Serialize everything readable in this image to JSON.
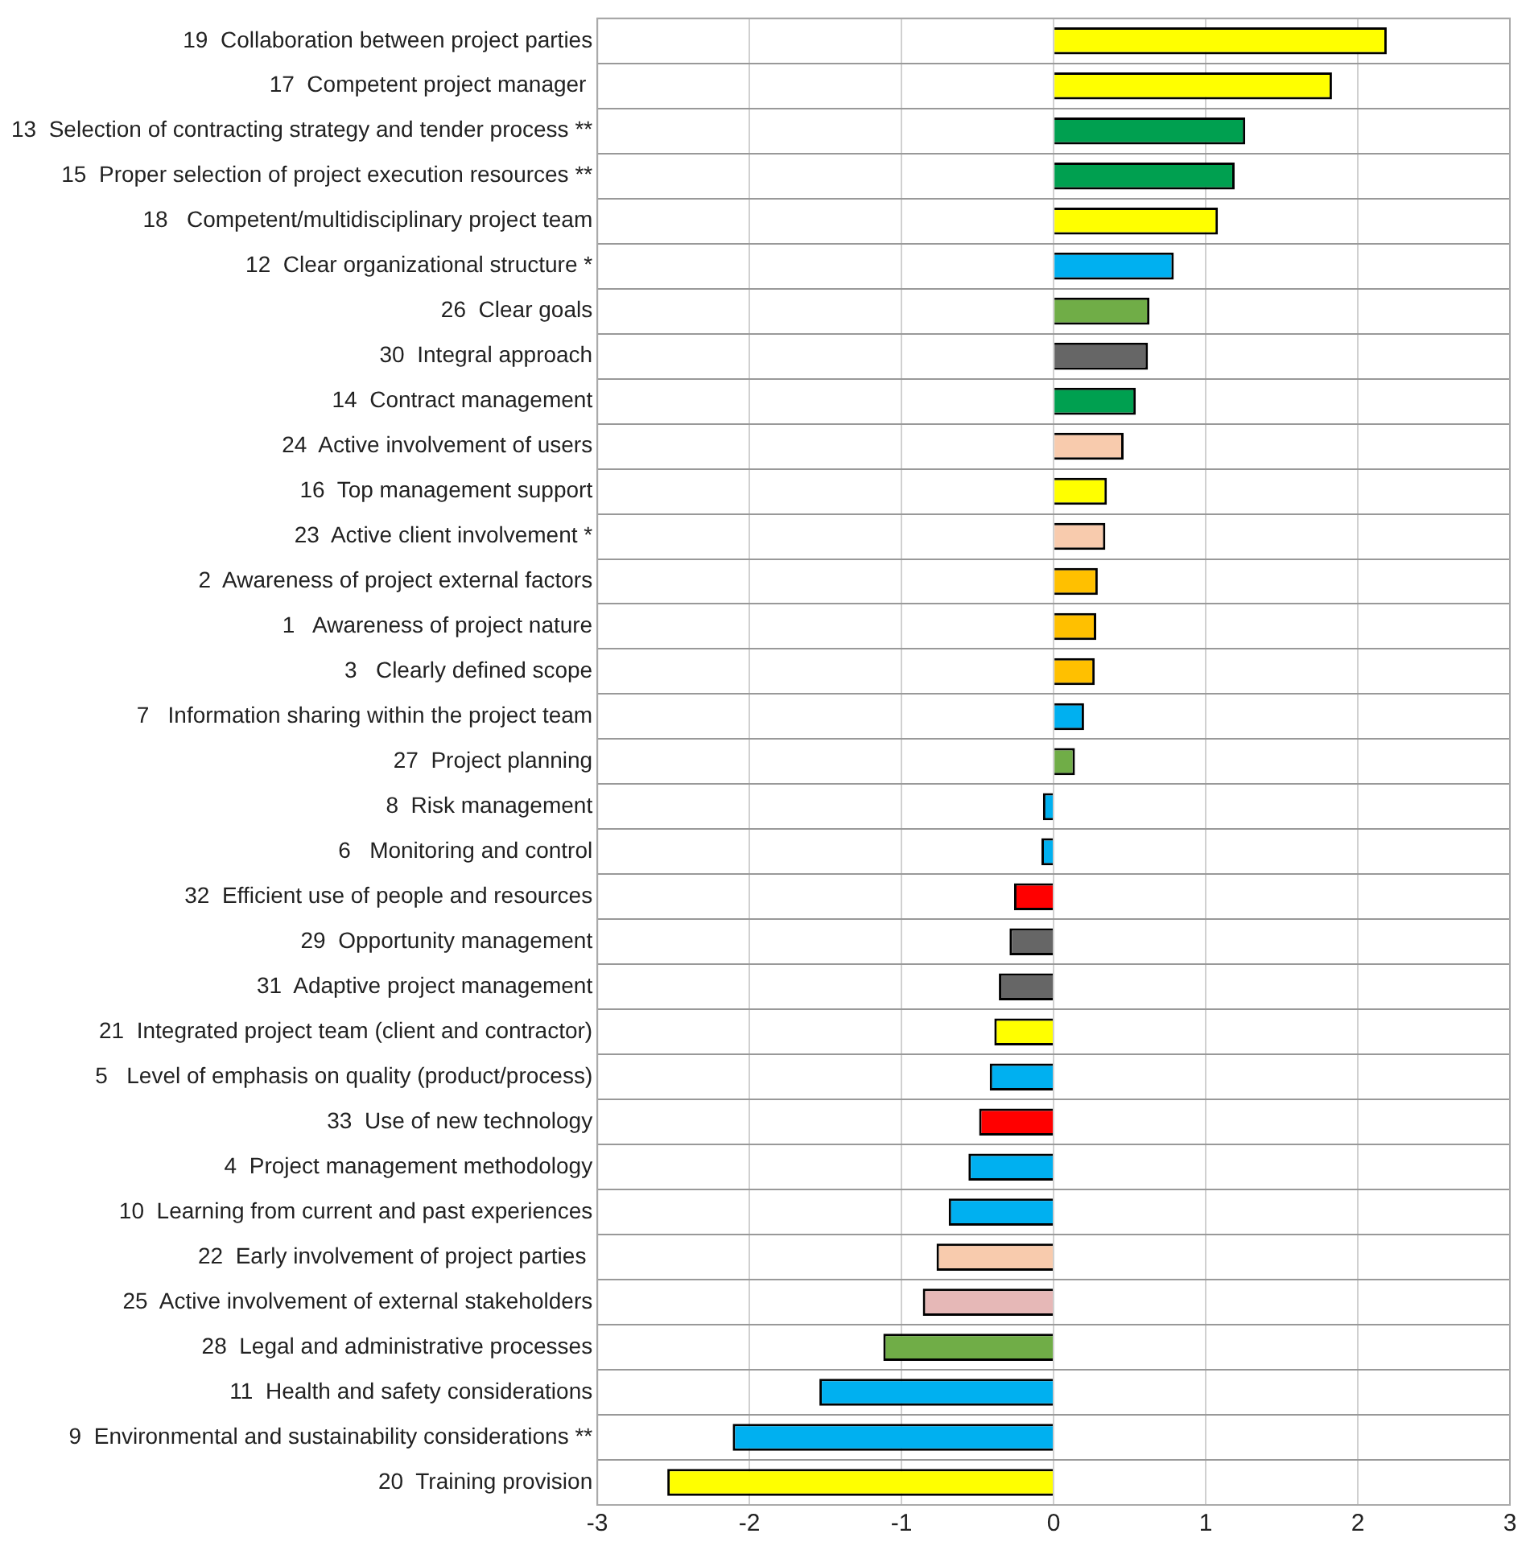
{
  "chart_data": {
    "type": "bar",
    "orientation": "horizontal",
    "categories": [
      "19  Collaboration between project parties",
      "17  Competent project manager ",
      "13  Selection of contracting strategy and tender process **",
      "15  Proper selection of project execution resources **",
      "18   Competent/multidisciplinary project team",
      "12  Clear organizational structure *",
      "26  Clear goals",
      "30  Integral approach",
      "14  Contract management",
      "24  Active involvement of users",
      "16  Top management support",
      "23  Active client involvement *",
      "2  Awareness of project external factors",
      "1   Awareness of project nature",
      "3   Clearly defined scope",
      "7   Information sharing within the project team",
      "27  Project planning",
      "8  Risk management",
      "6   Monitoring and control",
      "32  Efficient use of people and resources",
      "29  Opportunity management",
      "31  Adaptive project management",
      "21  Integrated project team (client and contractor)",
      "5   Level of emphasis on quality (product/process)",
      "33  Use of new technology",
      "4  Project management methodology",
      "10  Learning from current and past experiences",
      "22  Early involvement of project parties ",
      "25  Active involvement of external stakeholders",
      "28  Legal and administrative processes",
      "11  Health and safety considerations",
      "9  Environmental and sustainability considerations **",
      "20  Training provision"
    ],
    "values": [
      2.19,
      1.83,
      1.26,
      1.19,
      1.08,
      0.79,
      0.63,
      0.62,
      0.54,
      0.46,
      0.35,
      0.34,
      0.29,
      0.28,
      0.27,
      0.2,
      0.14,
      -0.07,
      -0.08,
      -0.26,
      -0.29,
      -0.36,
      -0.39,
      -0.42,
      -0.49,
      -0.56,
      -0.69,
      -0.77,
      -0.86,
      -1.12,
      -1.54,
      -2.11,
      -2.54
    ],
    "colors": [
      "#ffff00",
      "#ffff00",
      "#00a050",
      "#00a050",
      "#ffff00",
      "#00b0f0",
      "#70ad47",
      "#666666",
      "#00a050",
      "#f8cbad",
      "#ffff00",
      "#f8cbad",
      "#ffc000",
      "#ffc000",
      "#ffc000",
      "#00b0f0",
      "#70ad47",
      "#00b0f0",
      "#00b0f0",
      "#ff0000",
      "#666666",
      "#666666",
      "#ffff00",
      "#00b0f0",
      "#ff0000",
      "#00b0f0",
      "#00b0f0",
      "#f8cbad",
      "#e6b8b7",
      "#70ad47",
      "#00b0f0",
      "#00b0f0",
      "#ffff00"
    ],
    "xlim": [
      -3,
      3
    ],
    "xticks": [
      -3,
      -2,
      -1,
      0,
      1,
      2,
      3
    ],
    "grid": true
  }
}
